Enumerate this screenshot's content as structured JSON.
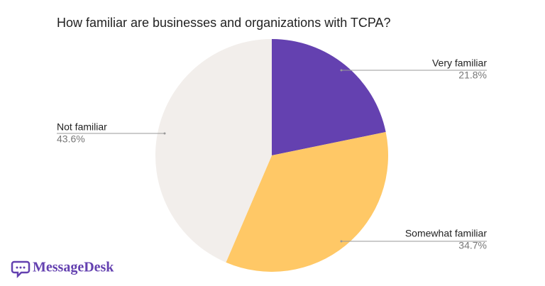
{
  "chart_data": {
    "type": "pie",
    "title": "How familiar are businesses and organizations with TCPA?",
    "categories": [
      "Very familiar",
      "Somewhat familiar",
      "Not familiar"
    ],
    "values": [
      21.8,
      34.7,
      43.6
    ],
    "value_labels": [
      "21.8%",
      "34.7%",
      "43.6%"
    ],
    "colors": [
      "#6441b0",
      "#ffc866",
      "#f2eeeb"
    ],
    "logo": "MessageDesk"
  }
}
